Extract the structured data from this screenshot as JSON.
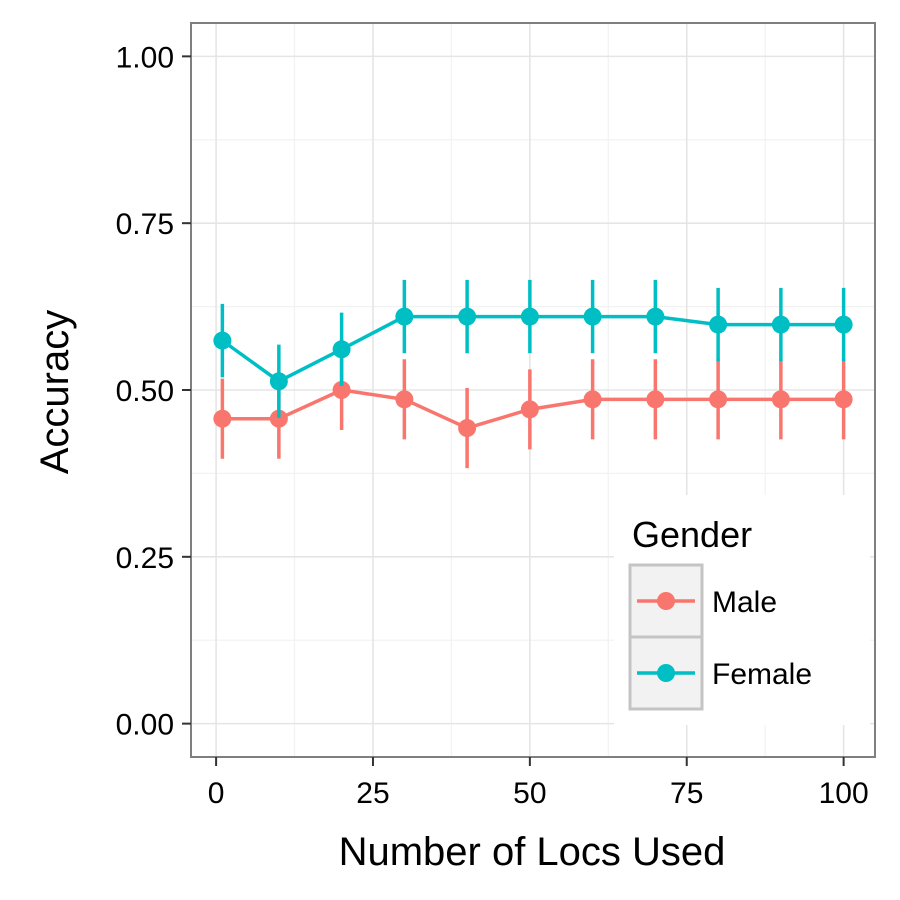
{
  "chart_data": {
    "type": "line",
    "xlabel": "Number of Locs Used",
    "ylabel": "Accuracy",
    "xlim": [
      -4,
      105
    ],
    "ylim": [
      -0.05,
      1.05
    ],
    "xticks": [
      0,
      25,
      50,
      75,
      100
    ],
    "xtick_labels": [
      "0",
      "25",
      "50",
      "75",
      "100"
    ],
    "yticks": [
      0,
      0.25,
      0.5,
      0.75,
      1.0
    ],
    "ytick_labels": [
      "0.00",
      "0.25",
      "0.50",
      "0.75",
      "1.00"
    ],
    "grid": true,
    "error_bars": true,
    "x": [
      1,
      10,
      20,
      30,
      40,
      50,
      60,
      70,
      80,
      90,
      100
    ],
    "series": [
      {
        "name": "Male",
        "color": "#F8766D",
        "values": [
          0.457,
          0.457,
          0.5,
          0.486,
          0.443,
          0.471,
          0.486,
          0.486,
          0.486,
          0.486,
          0.486
        ],
        "lower": [
          0.397,
          0.397,
          0.44,
          0.426,
          0.383,
          0.411,
          0.426,
          0.426,
          0.426,
          0.426,
          0.426
        ],
        "upper": [
          0.517,
          0.517,
          0.56,
          0.546,
          0.503,
          0.531,
          0.546,
          0.546,
          0.546,
          0.546,
          0.546
        ]
      },
      {
        "name": "Female",
        "color": "#00BFC4",
        "values": [
          0.574,
          0.513,
          0.561,
          0.61,
          0.61,
          0.61,
          0.61,
          0.61,
          0.598,
          0.598,
          0.598
        ],
        "lower": [
          0.519,
          0.458,
          0.506,
          0.555,
          0.555,
          0.555,
          0.555,
          0.555,
          0.543,
          0.543,
          0.543
        ],
        "upper": [
          0.629,
          0.568,
          0.616,
          0.665,
          0.665,
          0.665,
          0.665,
          0.665,
          0.653,
          0.653,
          0.653
        ]
      }
    ],
    "legend": {
      "title": "Gender",
      "placement": "bottom-right inside"
    }
  }
}
